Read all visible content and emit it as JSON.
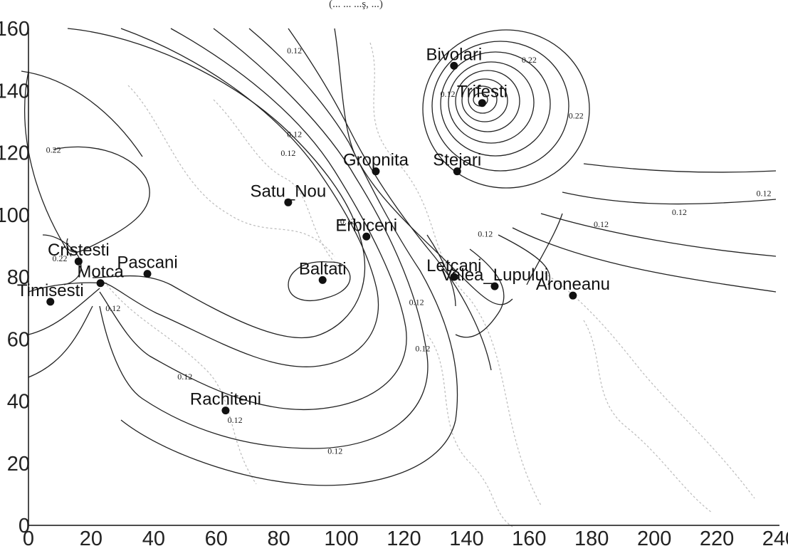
{
  "chart_data": {
    "type": "contour",
    "title": "(... ... ...ş, ...)",
    "xlim": [
      0,
      240
    ],
    "ylim": [
      0,
      160
    ],
    "x_ticks": [
      0,
      20,
      40,
      60,
      80,
      100,
      120,
      140,
      160,
      180,
      200,
      220,
      240
    ],
    "y_ticks": [
      0,
      20,
      40,
      60,
      80,
      100,
      120,
      140,
      160
    ],
    "grid": false,
    "stations": [
      {
        "name": "Bivolari",
        "x": 136,
        "y": 148
      },
      {
        "name": "Trifesti",
        "x": 145,
        "y": 136
      },
      {
        "name": "Gropnita",
        "x": 111,
        "y": 114
      },
      {
        "name": "Stejari",
        "x": 137,
        "y": 114
      },
      {
        "name": "Satu_Nou",
        "x": 83,
        "y": 104
      },
      {
        "name": "Erbiceni",
        "x": 108,
        "y": 93
      },
      {
        "name": "Cristesti",
        "x": 16,
        "y": 85
      },
      {
        "name": "Pascani",
        "x": 38,
        "y": 81
      },
      {
        "name": "Motca",
        "x": 23,
        "y": 78
      },
      {
        "name": "Timisesti",
        "x": 7,
        "y": 72
      },
      {
        "name": "Baltati",
        "x": 94,
        "y": 79
      },
      {
        "name": "Letcani",
        "x": 136,
        "y": 80
      },
      {
        "name": "Valea_Lupului",
        "x": 149,
        "y": 77
      },
      {
        "name": "Aroneanu",
        "x": 174,
        "y": 74
      },
      {
        "name": "Rachiteni",
        "x": 63,
        "y": 37
      }
    ],
    "contour_labels": [
      {
        "text": "0.12",
        "x": 85,
        "y": 152
      },
      {
        "text": "0.22",
        "x": 160,
        "y": 149
      },
      {
        "text": "0.12",
        "x": 134,
        "y": 138
      },
      {
        "text": "0.22",
        "x": 175,
        "y": 131
      },
      {
        "text": "0.22",
        "x": 8,
        "y": 120
      },
      {
        "text": "0.12",
        "x": 85,
        "y": 125
      },
      {
        "text": "0.12",
        "x": 83,
        "y": 119
      },
      {
        "text": "0.12",
        "x": 235,
        "y": 106
      },
      {
        "text": "0.12",
        "x": 208,
        "y": 100
      },
      {
        "text": "0.12",
        "x": 183,
        "y": 96
      },
      {
        "text": "0.12",
        "x": 102,
        "y": 97
      },
      {
        "text": "0.12",
        "x": 146,
        "y": 93
      },
      {
        "text": "0.22",
        "x": 10,
        "y": 85
      },
      {
        "text": "0.12",
        "x": 27,
        "y": 69
      },
      {
        "text": "0.12",
        "x": 124,
        "y": 71
      },
      {
        "text": "0.12",
        "x": 126,
        "y": 56
      },
      {
        "text": "0.12",
        "x": 50,
        "y": 47
      },
      {
        "text": "0.12",
        "x": 66,
        "y": 33
      },
      {
        "text": "0.12",
        "x": 98,
        "y": 23
      }
    ]
  }
}
